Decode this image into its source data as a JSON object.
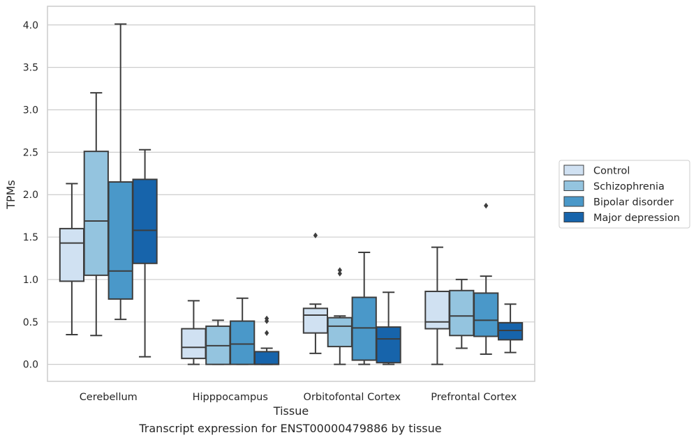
{
  "caption": "Transcript expression for ENST00000479886 by tissue",
  "colors": {
    "Control": "#d0e1f2",
    "Schizophrenia": "#94c4df",
    "Bipolar disorder": "#4a98c9",
    "Major depression": "#1764ab",
    "edge": "#3d3d3d",
    "grid": "#cccccc"
  },
  "chart_data": {
    "type": "box",
    "title": "",
    "xlabel": "Tissue",
    "ylabel": "TPMs",
    "ylim": [
      -0.2,
      4.22
    ],
    "yticks": [
      0.0,
      0.5,
      1.0,
      1.5,
      2.0,
      2.5,
      3.0,
      3.5,
      4.0
    ],
    "ytick_labels": [
      "0.0",
      "0.5",
      "1.0",
      "1.5",
      "2.0",
      "2.5",
      "3.0",
      "3.5",
      "4.0"
    ],
    "grid": "horizontal",
    "legend_position": "right",
    "categories": [
      "Cerebellum",
      "Hipppocampus",
      "Orbitofontal Cortex",
      "Prefrontal Cortex"
    ],
    "series": [
      {
        "name": "Control",
        "boxes": [
          {
            "whisker_low": 0.35,
            "q1": 0.98,
            "median": 1.43,
            "q3": 1.6,
            "whisker_high": 2.13,
            "outliers": []
          },
          {
            "whisker_low": 0.0,
            "q1": 0.07,
            "median": 0.2,
            "q3": 0.42,
            "whisker_high": 0.75,
            "outliers": []
          },
          {
            "whisker_low": 0.13,
            "q1": 0.37,
            "median": 0.58,
            "q3": 0.66,
            "whisker_high": 0.71,
            "outliers": [
              1.52
            ]
          },
          {
            "whisker_low": 0.0,
            "q1": 0.42,
            "median": 0.5,
            "q3": 0.86,
            "whisker_high": 1.38,
            "outliers": []
          }
        ]
      },
      {
        "name": "Schizophrenia",
        "boxes": [
          {
            "whisker_low": 0.34,
            "q1": 1.05,
            "median": 1.69,
            "q3": 2.51,
            "whisker_high": 3.2,
            "outliers": []
          },
          {
            "whisker_low": 0.0,
            "q1": 0.0,
            "median": 0.22,
            "q3": 0.45,
            "whisker_high": 0.52,
            "outliers": []
          },
          {
            "whisker_low": 0.0,
            "q1": 0.21,
            "median": 0.45,
            "q3": 0.55,
            "whisker_high": 0.57,
            "outliers": [
              1.07,
              1.11
            ]
          },
          {
            "whisker_low": 0.19,
            "q1": 0.34,
            "median": 0.57,
            "q3": 0.87,
            "whisker_high": 1.0,
            "outliers": []
          }
        ]
      },
      {
        "name": "Bipolar disorder",
        "boxes": [
          {
            "whisker_low": 0.53,
            "q1": 0.77,
            "median": 1.1,
            "q3": 2.15,
            "whisker_high": 4.01,
            "outliers": []
          },
          {
            "whisker_low": 0.0,
            "q1": 0.0,
            "median": 0.24,
            "q3": 0.51,
            "whisker_high": 0.78,
            "outliers": []
          },
          {
            "whisker_low": 0.0,
            "q1": 0.05,
            "median": 0.43,
            "q3": 0.79,
            "whisker_high": 1.32,
            "outliers": []
          },
          {
            "whisker_low": 0.12,
            "q1": 0.33,
            "median": 0.52,
            "q3": 0.84,
            "whisker_high": 1.04,
            "outliers": [
              1.87
            ]
          }
        ]
      },
      {
        "name": "Major depression",
        "boxes": [
          {
            "whisker_low": 0.09,
            "q1": 1.19,
            "median": 1.58,
            "q3": 2.18,
            "whisker_high": 2.53,
            "outliers": []
          },
          {
            "whisker_low": 0.0,
            "q1": 0.0,
            "median": 0.0,
            "q3": 0.15,
            "whisker_high": 0.19,
            "outliers": [
              0.37,
              0.51,
              0.54
            ]
          },
          {
            "whisker_low": 0.0,
            "q1": 0.02,
            "median": 0.3,
            "q3": 0.44,
            "whisker_high": 0.85,
            "outliers": []
          },
          {
            "whisker_low": 0.14,
            "q1": 0.29,
            "median": 0.4,
            "q3": 0.49,
            "whisker_high": 0.71,
            "outliers": []
          }
        ]
      }
    ]
  }
}
